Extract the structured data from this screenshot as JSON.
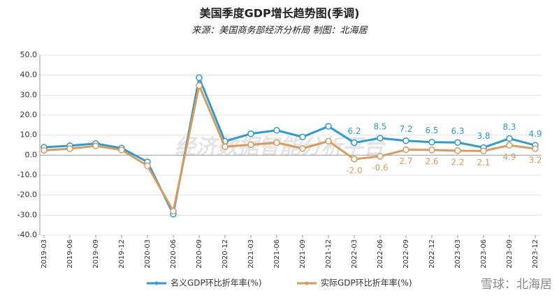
{
  "chart_data": {
    "type": "line",
    "title": "美国季度GDP增长趋势图(季调)",
    "subtitle": "来源：美国商务部经济分析局  制图：北海居",
    "watermark": "经济数据智能分析平台",
    "credit": "雪球：北海居",
    "categories": [
      "2019-03",
      "2019-06",
      "2019-09",
      "2019-12",
      "2020-03",
      "2020-06",
      "2020-09",
      "2020-12",
      "2021-03",
      "2021-06",
      "2021-09",
      "2021-12",
      "2022-03",
      "2022-06",
      "2022-09",
      "2022-12",
      "2023-03",
      "2023-06",
      "2023-09",
      "2023-12"
    ],
    "series": [
      {
        "name": "名义GDP环比折年率(%)",
        "color": "#2b9bd3",
        "values": [
          3.9,
          4.7,
          5.8,
          3.5,
          -3.4,
          -29.5,
          38.7,
          6.9,
          10.7,
          12.4,
          9.1,
          14.4,
          6.2,
          8.5,
          7.2,
          6.5,
          6.3,
          3.8,
          8.3,
          4.9
        ],
        "value_labels": [
          null,
          null,
          null,
          null,
          null,
          null,
          null,
          null,
          null,
          null,
          null,
          null,
          "6.2",
          "8.5",
          "7.2",
          "6.5",
          "6.3",
          "3.8",
          "8.3",
          "4.9"
        ]
      },
      {
        "name": "实际GDP环比折年率(%)",
        "color": "#d99a5b",
        "values": [
          2.4,
          3.2,
          4.6,
          2.6,
          -5.3,
          -28.0,
          34.8,
          4.2,
          5.2,
          6.2,
          3.3,
          7.0,
          -2.0,
          -0.6,
          2.7,
          2.6,
          2.2,
          2.1,
          4.9,
          3.2
        ],
        "value_labels": [
          null,
          null,
          null,
          null,
          null,
          null,
          null,
          null,
          null,
          null,
          null,
          null,
          "-2.0",
          "-0.6",
          "2.7",
          "2.6",
          "2.2",
          "2.1",
          "4.9",
          "3.2"
        ]
      }
    ],
    "ylim": [
      -40,
      50
    ],
    "yticks": [
      {
        "value": -40,
        "label": "-40.0"
      },
      {
        "value": -30,
        "label": "-30.0"
      },
      {
        "value": -20,
        "label": "-20.0"
      },
      {
        "value": -10,
        "label": "-10.0"
      },
      {
        "value": 0,
        "label": "0.0"
      },
      {
        "value": 10,
        "label": "10.0"
      },
      {
        "value": 20,
        "label": "20.0"
      },
      {
        "value": 30,
        "label": "30.0"
      },
      {
        "value": 40,
        "label": "40.0"
      },
      {
        "value": 50,
        "label": "50.0"
      }
    ],
    "grid": true
  }
}
